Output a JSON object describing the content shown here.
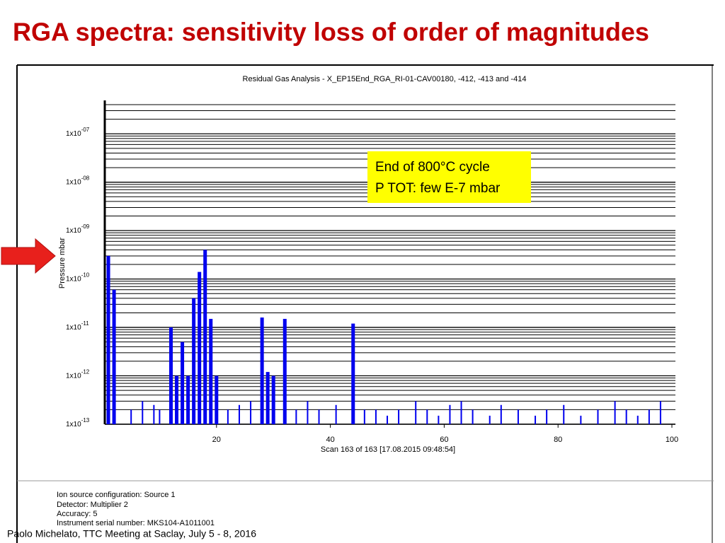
{
  "slide_title": "RGA spectra: sensitivity loss of order of magnitudes",
  "footer": "Paolo Michelato, TTC Meeting at Saclay, July 5 - 8, 2016",
  "chart_data": {
    "type": "spectrum",
    "title": "Residual Gas Analysis - X_EP15End_RGA_RI-01-CAV00180, -412, -413 and -414",
    "x_label": "Scan 163 of 163 [17.08.2015 09:48:54]",
    "y_label": "Pressure mbar",
    "annotation": [
      "End of 800°C cycle",
      "P TOT: few E-7 mbar"
    ],
    "info": [
      "Ion source configuration: Source 1",
      "Detector: Multiplier 2",
      "Accuracy: 5",
      "Instrument serial number: MKS104-A1011001"
    ],
    "x": [
      1,
      2,
      5,
      7,
      9,
      10,
      12,
      13,
      14,
      15,
      16,
      17,
      18,
      19,
      20,
      22,
      24,
      26,
      28,
      29,
      30,
      32,
      34,
      36,
      38,
      41,
      44,
      46,
      48,
      50,
      52,
      55,
      57,
      59,
      61,
      63,
      65,
      68,
      70,
      73,
      76,
      78,
      81,
      84,
      87,
      90,
      92,
      94,
      96,
      98
    ],
    "values": [
      3e-10,
      6e-11,
      2e-13,
      3e-13,
      2.5e-13,
      2e-13,
      1e-11,
      1e-12,
      5e-12,
      1e-12,
      4e-11,
      1.4e-10,
      4e-10,
      1.5e-11,
      1e-12,
      2e-13,
      2.5e-13,
      3e-13,
      1.6e-11,
      1.2e-12,
      1e-12,
      1.5e-11,
      2e-13,
      3e-13,
      2e-13,
      2.5e-13,
      1.2e-11,
      2e-13,
      2e-13,
      1.5e-13,
      2e-13,
      3e-13,
      2e-13,
      1.5e-13,
      2.5e-13,
      3e-13,
      2e-13,
      1.5e-13,
      2.5e-13,
      2e-13,
      1.5e-13,
      2e-13,
      2.5e-13,
      1.5e-13,
      2e-13,
      3e-13,
      2e-13,
      1.5e-13,
      2e-13,
      3e-13
    ],
    "color": "#0000ee",
    "log_y": true,
    "minor_grid": true,
    "xlim": [
      0,
      100
    ],
    "xticks": [
      20,
      40,
      60,
      80,
      100
    ],
    "ylim": [
      1e-13,
      4e-07
    ],
    "yticks": [
      {
        "value": 1e-13,
        "label": "1x10",
        "exponent": "-13"
      },
      {
        "value": 1e-12,
        "label": "1x10",
        "exponent": "-12"
      },
      {
        "value": 1e-11,
        "label": "1x10",
        "exponent": "-11"
      },
      {
        "value": 1e-10,
        "label": "1x10",
        "exponent": "-10"
      },
      {
        "value": 1e-09,
        "label": "1x10",
        "exponent": "-09"
      },
      {
        "value": 1e-08,
        "label": "1x10",
        "exponent": "-08"
      },
      {
        "value": 1e-07,
        "label": "1x10",
        "exponent": "-07"
      }
    ]
  }
}
